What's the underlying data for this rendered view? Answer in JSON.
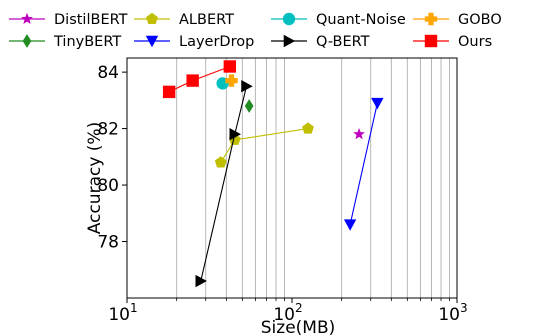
{
  "chart_data": {
    "type": "scatter",
    "xlabel": "Size(MB)",
    "ylabel": "Accuracy (%)",
    "xscale": "log",
    "xlim": [
      10,
      1000
    ],
    "ylim": [
      76.0,
      84.5
    ],
    "x_tick_labels": [
      {
        "value": 10,
        "base": "10",
        "exp": "1"
      },
      {
        "value": 100,
        "base": "10",
        "exp": "2"
      },
      {
        "value": 1000,
        "base": "10",
        "exp": "3"
      }
    ],
    "y_ticks": [
      78,
      80,
      82,
      84
    ],
    "grid": "vertical minor lines on log x-axis",
    "legend_position": "top, above plot",
    "series": [
      {
        "name": "DistilBERT",
        "color": "#bf00bf",
        "marker": "star",
        "connected": false,
        "points": [
          [
            255,
            81.8
          ]
        ]
      },
      {
        "name": "TinyBERT",
        "color": "#228b22",
        "marker": "diamond",
        "connected": false,
        "points": [
          [
            55,
            82.8
          ]
        ]
      },
      {
        "name": "ALBERT",
        "color": "#bfbf00",
        "marker": "pentagon",
        "connected": true,
        "points": [
          [
            37,
            80.8
          ],
          [
            45,
            81.6
          ],
          [
            125,
            82.0
          ]
        ]
      },
      {
        "name": "LayerDrop",
        "color": "#0000ff",
        "marker": "triangle-down",
        "connected": true,
        "points": [
          [
            225,
            78.6
          ],
          [
            329,
            82.9
          ]
        ]
      },
      {
        "name": "Quant-Noise",
        "color": "#00bfbf",
        "marker": "circle",
        "connected": false,
        "points": [
          [
            38,
            83.6
          ]
        ]
      },
      {
        "name": "Q-BERT",
        "color": "#000000",
        "marker": "triangle-right",
        "connected": true,
        "points": [
          [
            28,
            76.6
          ],
          [
            45,
            81.8
          ],
          [
            53,
            83.5
          ]
        ]
      },
      {
        "name": "GOBO",
        "color": "#ffa500",
        "marker": "plus",
        "connected": false,
        "points": [
          [
            43,
            83.7
          ]
        ]
      },
      {
        "name": "Ours",
        "color": "#ff0000",
        "marker": "square",
        "connected": true,
        "points": [
          [
            18,
            83.3
          ],
          [
            25,
            83.7
          ],
          [
            42,
            84.2
          ]
        ]
      }
    ]
  }
}
